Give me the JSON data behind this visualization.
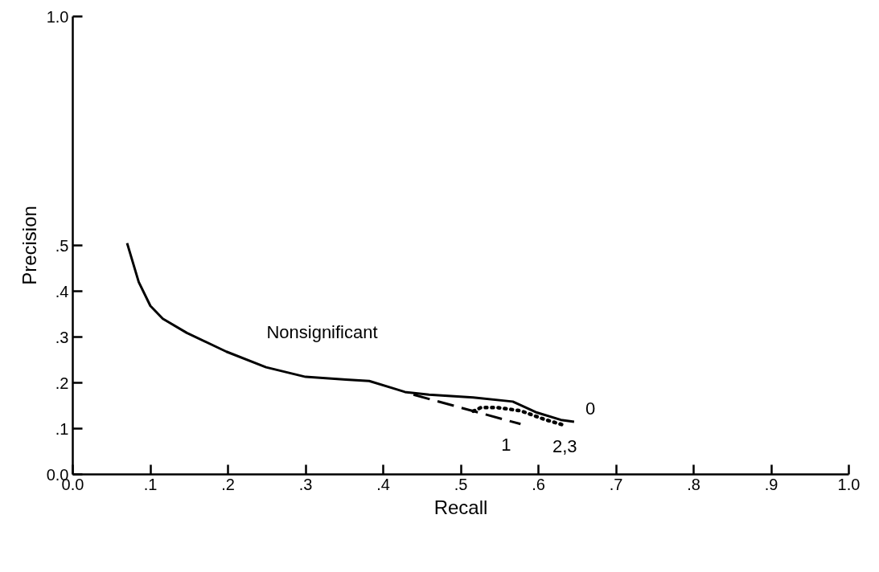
{
  "chart_data": {
    "type": "line",
    "xlabel": "Recall",
    "ylabel": "Precision",
    "xlim": [
      0,
      1.0
    ],
    "ylim": [
      0,
      1.0
    ],
    "xticks": [
      {
        "value": 0,
        "label": "0.0"
      },
      {
        "value": 0.1,
        "label": ".1"
      },
      {
        "value": 0.2,
        "label": ".2"
      },
      {
        "value": 0.3,
        "label": ".3"
      },
      {
        "value": 0.4,
        "label": ".4"
      },
      {
        "value": 0.5,
        "label": ".5"
      },
      {
        "value": 0.6,
        "label": ".6"
      },
      {
        "value": 0.7,
        "label": ".7"
      },
      {
        "value": 0.8,
        "label": ".8"
      },
      {
        "value": 0.9,
        "label": ".9"
      },
      {
        "value": 1.0,
        "label": "1.0"
      }
    ],
    "yticks": [
      {
        "value": 0,
        "label": "0.0"
      },
      {
        "value": 0.1,
        "label": ".1"
      },
      {
        "value": 0.2,
        "label": ".2"
      },
      {
        "value": 0.3,
        "label": ".3"
      },
      {
        "value": 0.4,
        "label": ".4"
      },
      {
        "value": 0.5,
        "label": ".5"
      },
      {
        "value": 1.0,
        "label": "1.0"
      }
    ],
    "grid": false,
    "series": [
      {
        "name": "0",
        "color": "#000000",
        "line_style": "solid",
        "x": [
          0.07,
          0.085,
          0.1,
          0.116,
          0.147,
          0.198,
          0.249,
          0.3,
          0.352,
          0.382,
          0.413,
          0.428,
          0.459,
          0.516,
          0.567,
          0.598,
          0.629,
          0.646
        ],
        "values": [
          0.505,
          0.42,
          0.368,
          0.34,
          0.309,
          0.268,
          0.234,
          0.213,
          0.207,
          0.204,
          0.188,
          0.18,
          0.174,
          0.168,
          0.159,
          0.135,
          0.119,
          0.115
        ]
      },
      {
        "name": "1",
        "color": "#000000",
        "line_style": "dashed",
        "x": [
          0.439,
          0.577
        ],
        "values": [
          0.174,
          0.11
        ]
      },
      {
        "name": "2,3",
        "color": "#000000",
        "line_style": "dotted",
        "x": [
          0.516,
          0.526,
          0.547,
          0.577,
          0.608,
          0.634
        ],
        "values": [
          0.138,
          0.146,
          0.146,
          0.139,
          0.12,
          0.107
        ]
      }
    ],
    "annotations": [
      "Nonsignificant"
    ]
  }
}
